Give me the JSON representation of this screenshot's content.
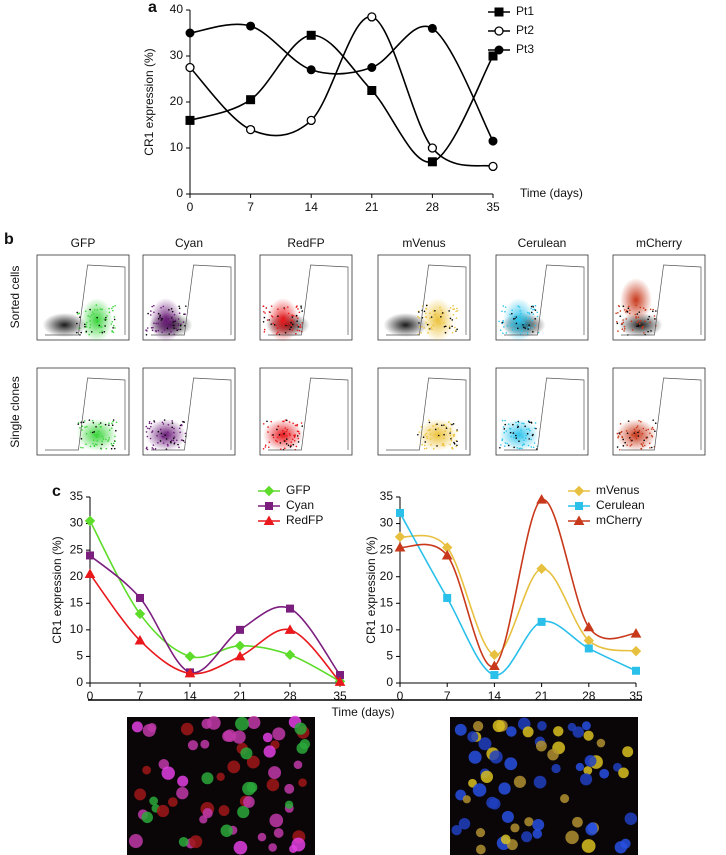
{
  "panel_labels": [
    "a",
    "b",
    "c"
  ],
  "flow": {
    "columns": [
      "GFP",
      "Cyan",
      "RedFP",
      "mVenus",
      "Cerulean",
      "mCherry"
    ],
    "column_colors": [
      "#39d43a",
      "#6a1a78",
      "#e8181c",
      "#ecc23a",
      "#2ec4ec",
      "#c8391b"
    ],
    "rows": [
      "Sorted cells",
      "Single clones"
    ]
  },
  "chart_data": [
    {
      "type": "line",
      "ylabel": "CR1  expression (%)",
      "xlabel": "Time (days)",
      "x": [
        0,
        7,
        14,
        21,
        28,
        35
      ],
      "xlim": [
        0,
        35
      ],
      "xticks": [
        0,
        7,
        14,
        21,
        28,
        35
      ],
      "ylim": [
        0,
        40
      ],
      "yticks": [
        0,
        10,
        20,
        30,
        40
      ],
      "legend": "upper right",
      "series": [
        {
          "name": "Pt1",
          "color": "#000000",
          "marker": "square",
          "values": [
            16,
            20.5,
            34.5,
            22.5,
            7,
            30
          ]
        },
        {
          "name": "Pt2",
          "color": "#000000",
          "marker": "open-circle",
          "values": [
            27.5,
            14,
            16,
            38.5,
            10,
            6
          ]
        },
        {
          "name": "Pt3",
          "color": "#000000",
          "marker": "circle",
          "values": [
            35,
            36.5,
            27,
            27.5,
            36,
            11.5
          ]
        }
      ]
    },
    {
      "type": "line",
      "ylabel": "CR1 expression (%)",
      "xlabel": "Time (days)",
      "x": [
        0,
        7,
        14,
        21,
        28,
        35
      ],
      "xlim": [
        0,
        35
      ],
      "xticks": [
        0,
        7,
        14,
        21,
        28,
        35
      ],
      "ylim": [
        0,
        35
      ],
      "yticks": [
        0,
        5,
        10,
        15,
        20,
        25,
        30,
        35
      ],
      "legend": "upper right",
      "series": [
        {
          "name": "GFP",
          "color": "#5ddc2a",
          "marker": "diamond",
          "values": [
            30.5,
            13,
            5,
            7,
            5.3,
            0.3
          ]
        },
        {
          "name": "Cyan",
          "color": "#7b1e7e",
          "marker": "square",
          "values": [
            24,
            16,
            2,
            10,
            14,
            1.5
          ]
        },
        {
          "name": "RedFP",
          "color": "#e8181c",
          "marker": "triangle",
          "values": [
            20.5,
            8,
            1.8,
            5,
            10,
            0.2
          ]
        }
      ]
    },
    {
      "type": "line",
      "ylabel": "CR1 expression (%)",
      "x": [
        0,
        7,
        14,
        21,
        28,
        35
      ],
      "xlim": [
        0,
        35
      ],
      "xticks": [
        0,
        7,
        14,
        21,
        28,
        35
      ],
      "ylim": [
        0,
        35
      ],
      "yticks": [
        0,
        5,
        10,
        15,
        20,
        25,
        30,
        35
      ],
      "legend": "upper right",
      "series": [
        {
          "name": "mVenus",
          "color": "#e8c040",
          "marker": "diamond",
          "values": [
            27.5,
            25.5,
            5.3,
            21.5,
            8,
            6
          ]
        },
        {
          "name": "Cerulean",
          "color": "#2ac0ea",
          "marker": "square",
          "values": [
            32,
            16,
            1.5,
            11.5,
            6.5,
            2.3
          ]
        },
        {
          "name": "mCherry",
          "color": "#c8391b",
          "marker": "triangle",
          "values": [
            25.5,
            24,
            3.2,
            34.5,
            10.5,
            9.3
          ]
        }
      ]
    }
  ]
}
